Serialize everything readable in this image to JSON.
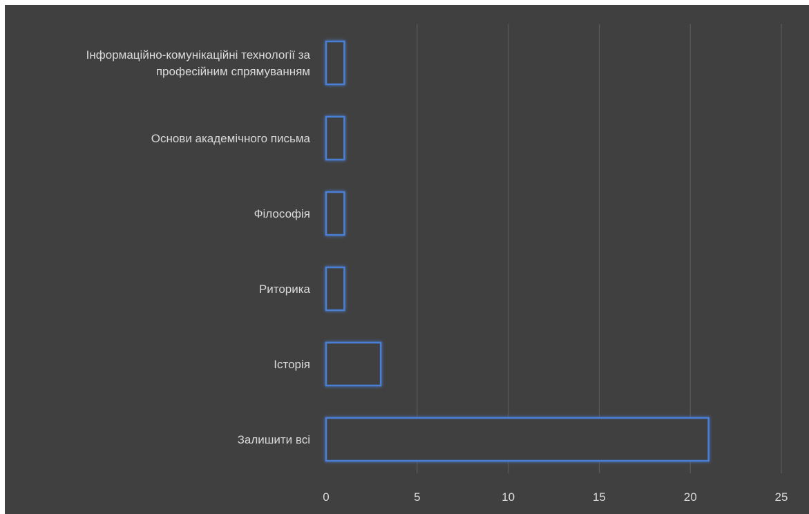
{
  "chart_data": {
    "type": "bar",
    "orientation": "horizontal",
    "categories": [
      "Інформаційно-комунікаційні технології за професійним спрямуванням",
      "Основи академічного письма",
      "Філософія",
      "Риторика",
      "Історія",
      "Залишити всі"
    ],
    "category_lines": [
      [
        "Інформаційно-комунікаційні технології за",
        "професійним спрямуванням"
      ],
      [
        "Основи академічного письма"
      ],
      [
        "Філософія"
      ],
      [
        "Риторика"
      ],
      [
        "Історія"
      ],
      [
        "Залишити всі"
      ]
    ],
    "values": [
      1,
      1,
      1,
      1,
      3,
      21
    ],
    "xlim": [
      0,
      25
    ],
    "xticks": [
      "0",
      "5",
      "10",
      "15",
      "20",
      "25"
    ],
    "title": "",
    "xlabel": "",
    "ylabel": "",
    "grid": "vertical",
    "legend": "none"
  },
  "colors": {
    "background": "#404040",
    "bar_outline": "#4a7fd6",
    "text": "#d9d9d9",
    "gridline": "#5f5f5f"
  }
}
